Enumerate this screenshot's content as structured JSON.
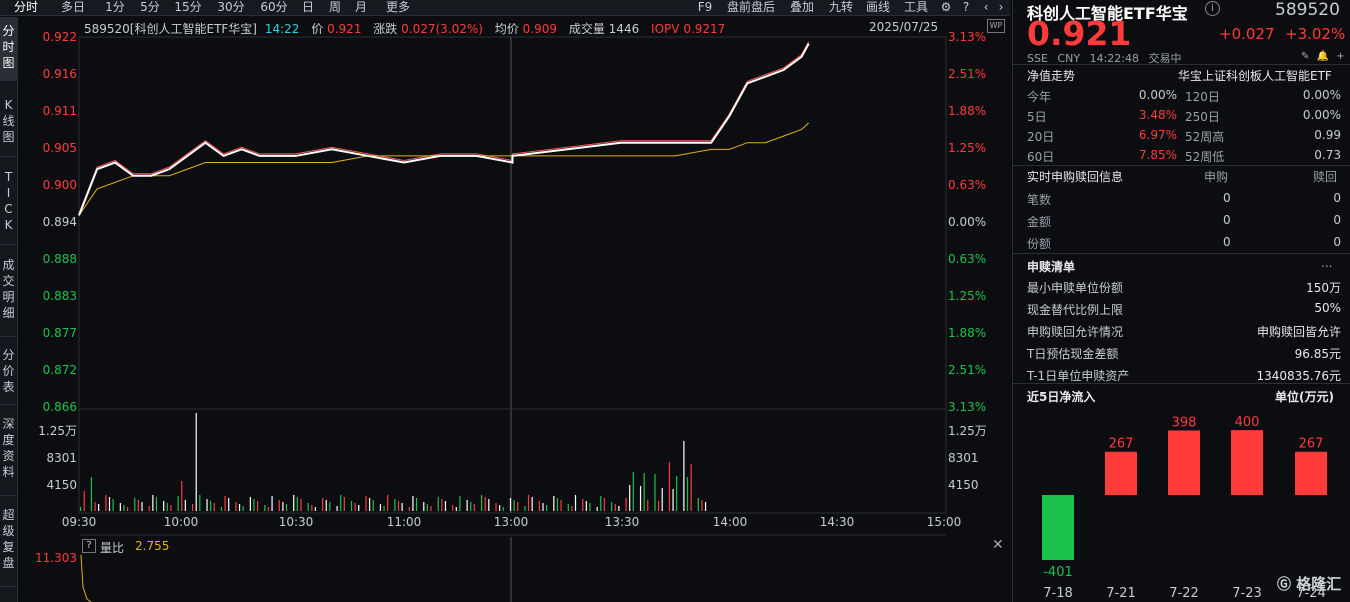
{
  "toolbar": {
    "tabs": [
      "分时",
      "多日",
      "1分",
      "5分",
      "15分",
      "30分",
      "60分",
      "日",
      "周",
      "月",
      "更多"
    ],
    "right": [
      "F9",
      "盘前盘后",
      "叠加",
      "九转",
      "画线",
      "工具"
    ]
  },
  "sidebar": {
    "tabs": [
      "分\n时\n图",
      "K\n线\n图",
      "T\nI\nC\nK",
      "成\n交\n明\n细",
      "分\n价\n表",
      "深\n度\n资\n料",
      "超\n级\n复\n盘"
    ]
  },
  "chart": {
    "header": {
      "code_name": "589520[科创人工智能ETF华宝]",
      "time": "14:22",
      "price_label": "价",
      "price": "0.921",
      "change_label": "涨跌",
      "change": "0.027(3.02%)",
      "avg_label": "均价",
      "avg": "0.909",
      "vol_label": "成交量",
      "vol": "1446",
      "iopv_label": "IOPV",
      "iopv": "0.9217",
      "date": "2025/07/25"
    },
    "price_ticks": [
      "0.922",
      "0.916",
      "0.911",
      "0.905",
      "0.900",
      "0.894",
      "0.888",
      "0.883",
      "0.877",
      "0.872",
      "0.866"
    ],
    "pct_ticks": [
      "3.13%",
      "2.51%",
      "1.88%",
      "1.25%",
      "0.63%",
      "0.00%",
      "0.63%",
      "1.25%",
      "1.88%",
      "2.51%",
      "3.13%"
    ],
    "vol_ticks_left": [
      "1.25万",
      "8301",
      "4150"
    ],
    "vol_ticks_right": [
      "1.25万",
      "8301",
      "4150"
    ],
    "time_ticks": [
      "09:30",
      "10:00",
      "10:30",
      "11:00",
      "13:00",
      "13:30",
      "14:00",
      "14:30",
      "15:00"
    ],
    "ratio_label": "量比",
    "ratio_value": "2.755",
    "ratio_tick": "11.303"
  },
  "chart_data": {
    "type": "line",
    "x": [
      "09:30",
      "09:35",
      "09:40",
      "09:45",
      "09:50",
      "09:55",
      "10:00",
      "10:05",
      "10:10",
      "10:15",
      "10:20",
      "10:25",
      "10:30",
      "10:40",
      "10:50",
      "11:00",
      "11:10",
      "11:20",
      "11:30",
      "13:00",
      "13:15",
      "13:30",
      "13:45",
      "13:55",
      "14:00",
      "14:05",
      "14:10",
      "14:15",
      "14:20",
      "14:22"
    ],
    "series": [
      {
        "values": [
          0.895,
          0.902,
          0.903,
          0.901,
          0.901,
          0.902,
          0.904,
          0.906,
          0.904,
          0.905,
          0.904,
          0.904,
          0.904,
          0.905,
          0.904,
          0.903,
          0.904,
          0.904,
          0.903,
          0.904,
          0.905,
          0.906,
          0.906,
          0.906,
          0.91,
          0.915,
          0.916,
          0.917,
          0.919,
          0.921
        ]
      },
      {
        "values": [
          0.895,
          0.899,
          0.9,
          0.901,
          0.901,
          0.901,
          0.902,
          0.903,
          0.903,
          0.903,
          0.903,
          0.903,
          0.903,
          0.903,
          0.904,
          0.904,
          0.904,
          0.904,
          0.904,
          0.904,
          0.904,
          0.904,
          0.904,
          0.905,
          0.905,
          0.906,
          0.906,
          0.907,
          0.908,
          0.909
        ]
      }
    ],
    "ylim": [
      0.866,
      0.922
    ],
    "yref": 0.894
  },
  "right": {
    "title": "科创人工智能ETF华宝",
    "code": "589520",
    "price": "0.921",
    "change": "+0.027",
    "change_pct": "+3.02%",
    "exchange": "SSE",
    "currency": "CNY",
    "time": "14:22:48",
    "status": "交易中",
    "nav": {
      "header": "净值走势",
      "sub": "华宝上证科创板人工智能ETF",
      "rows": [
        [
          "今年",
          "0.00%",
          "120日",
          "0.00%"
        ],
        [
          "5日",
          "3.48%",
          "250日",
          "0.00%"
        ],
        [
          "20日",
          "6.97%",
          "52周高",
          "0.99"
        ],
        [
          "60日",
          "7.85%",
          "52周低",
          "0.73"
        ]
      ]
    },
    "redeem": {
      "header": "实时申购赎回信息",
      "col1": "申购",
      "col2": "赎回",
      "rows": [
        [
          "笔数",
          "0",
          "0"
        ],
        [
          "金额",
          "0",
          "0"
        ],
        [
          "份额",
          "0",
          "0"
        ]
      ]
    },
    "list": {
      "header": "申赎清单",
      "more": "...",
      "rows": [
        [
          "最小申赎单位份额",
          "150万"
        ],
        [
          "现金替代比例上限",
          "50%"
        ],
        [
          "申购赎回允许情况",
          "申购赎回皆允许"
        ],
        [
          "T日预估现金差额",
          "96.85元"
        ],
        [
          "T-1日单位申赎资产",
          "1340835.76元"
        ]
      ]
    },
    "flow": {
      "header": "近5日净流入",
      "unit": "单位(万元)",
      "bars": [
        {
          "date": "7-18",
          "value": -401
        },
        {
          "date": "7-21",
          "value": 267
        },
        {
          "date": "7-22",
          "value": 398
        },
        {
          "date": "7-23",
          "value": 400
        },
        {
          "date": "7-24",
          "value": 267
        }
      ],
      "labels": [
        "-401",
        "267",
        "398",
        "400",
        "267"
      ]
    },
    "brand": "格隆汇"
  },
  "colors": {
    "red": "#ff3b3b",
    "green": "#19c34b",
    "price_line": "#ffffff",
    "avg_line": "#e0b21a",
    "iopv_line": "#ff5a5a"
  }
}
